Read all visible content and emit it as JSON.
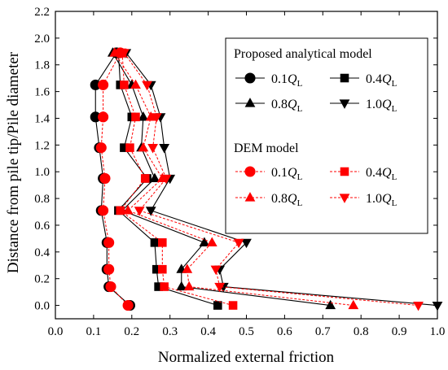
{
  "chart_data": {
    "type": "line",
    "xlabel": "Normalized external friction",
    "ylabel": "Distance from pile tip/Pile diameter",
    "xlim": [
      0.0,
      1.0
    ],
    "ylim": [
      -0.1,
      2.2
    ],
    "x_ticks": [
      "0.0",
      "0.1",
      "0.2",
      "0.3",
      "0.4",
      "0.5",
      "0.6",
      "0.7",
      "0.8",
      "0.9",
      "1.0"
    ],
    "y_ticks": [
      "0.0",
      "0.2",
      "0.4",
      "0.6",
      "0.8",
      "1.0",
      "1.2",
      "1.4",
      "1.6",
      "1.8",
      "2.0",
      "2.2"
    ],
    "legend": {
      "placement": "top-right",
      "group_titles": [
        "Proposed analytical model",
        "DEM model"
      ],
      "entries": [
        {
          "base": "0.1",
          "sym": "Q",
          "sub": "L"
        },
        {
          "base": "0.4",
          "sym": "Q",
          "sub": "L"
        },
        {
          "base": "0.8",
          "sym": "Q",
          "sub": "L"
        },
        {
          "base": "1.0",
          "sym": "Q",
          "sub": "L"
        }
      ]
    },
    "y": [
      0.0,
      0.14,
      0.27,
      0.47,
      0.71,
      0.95,
      1.18,
      1.41,
      1.65,
      1.89
    ],
    "series": [
      {
        "name": "Proposed analytical model 0.1QL",
        "group": "analytical",
        "marker": "circle",
        "color": "#000000",
        "x": [
          0.195,
          0.14,
          0.135,
          0.135,
          0.12,
          0.125,
          0.115,
          0.105,
          0.105,
          0.16
        ]
      },
      {
        "name": "Proposed analytical model 0.4QL",
        "group": "analytical",
        "marker": "square",
        "color": "#000000",
        "x": [
          0.425,
          0.27,
          0.265,
          0.26,
          0.165,
          0.24,
          0.18,
          0.2,
          0.17,
          0.165
        ]
      },
      {
        "name": "Proposed analytical model 0.8QL",
        "group": "analytical",
        "marker": "triangle-up",
        "color": "#000000",
        "x": [
          0.72,
          0.33,
          0.33,
          0.39,
          0.175,
          0.26,
          0.225,
          0.23,
          0.2,
          0.15
        ]
      },
      {
        "name": "Proposed analytical model 1.0QL",
        "group": "analytical",
        "marker": "triangle-down",
        "color": "#000000",
        "x": [
          1.0,
          0.44,
          0.43,
          0.5,
          0.25,
          0.3,
          0.285,
          0.275,
          0.25,
          0.185
        ]
      },
      {
        "name": "DEM model 0.1QL",
        "group": "dem",
        "marker": "circle",
        "color": "#ff0000",
        "x": [
          0.19,
          0.145,
          0.14,
          0.14,
          0.125,
          0.13,
          0.12,
          0.125,
          0.125,
          0.17
        ]
      },
      {
        "name": "DEM model 0.4QL",
        "group": "dem",
        "marker": "square",
        "color": "#ff0000",
        "x": [
          0.465,
          0.285,
          0.28,
          0.28,
          0.17,
          0.235,
          0.195,
          0.21,
          0.18,
          0.175
        ]
      },
      {
        "name": "DEM model 0.8QL",
        "group": "dem",
        "marker": "triangle-up",
        "color": "#ff0000",
        "x": [
          0.78,
          0.35,
          0.345,
          0.41,
          0.19,
          0.28,
          0.23,
          0.25,
          0.21,
          0.155
        ]
      },
      {
        "name": "DEM model 1.0QL",
        "group": "dem",
        "marker": "triangle-down",
        "color": "#ff0000",
        "x": [
          0.95,
          0.43,
          0.42,
          0.48,
          0.22,
          0.29,
          0.255,
          0.265,
          0.24,
          0.18
        ]
      }
    ]
  }
}
